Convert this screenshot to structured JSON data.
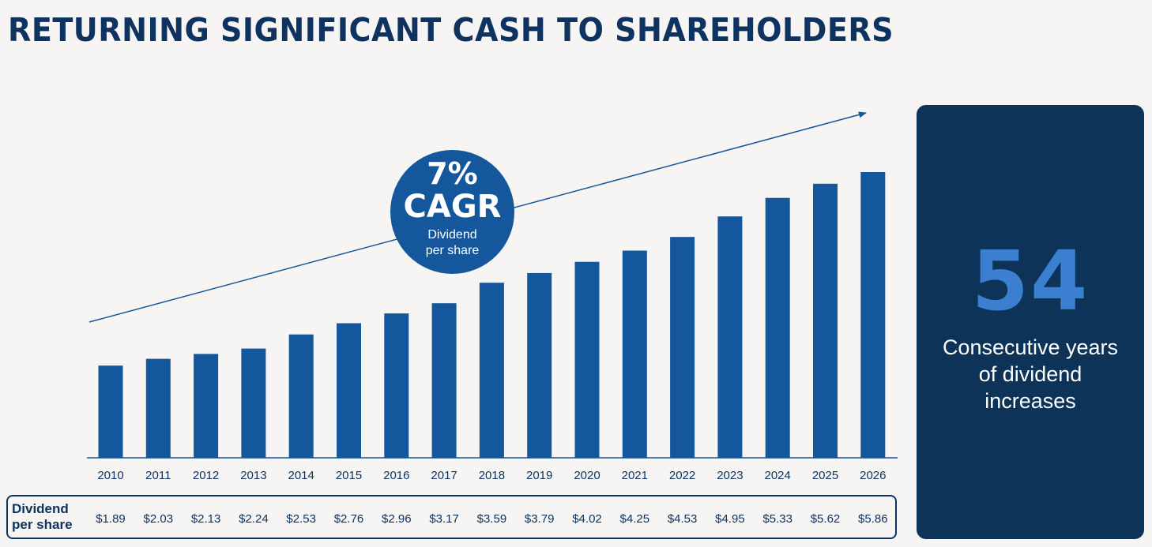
{
  "title": "RETURNING SIGNIFICANT CASH TO SHAREHOLDERS",
  "cagr": {
    "pct": "7%",
    "label": "CAGR",
    "sub_line1": "Dividend",
    "sub_line2": "per share"
  },
  "panel": {
    "number": "54",
    "text_line1": "Consecutive years",
    "text_line2": "of dividend",
    "text_line3": "increases"
  },
  "table": {
    "row_label_line1": "Dividend",
    "row_label_line2": "per share"
  },
  "chart_data": {
    "type": "bar",
    "title": "RETURNING SIGNIFICANT CASH TO SHAREHOLDERS",
    "xlabel": "",
    "ylabel": "Dividend per share",
    "categories": [
      "2010",
      "2011",
      "2012",
      "2013",
      "2014",
      "2015",
      "2016",
      "2017",
      "2018",
      "2019",
      "2020",
      "2021",
      "2022",
      "2023",
      "2024",
      "2025",
      "2026"
    ],
    "values": [
      1.89,
      2.03,
      2.13,
      2.24,
      2.53,
      2.76,
      2.96,
      3.17,
      3.59,
      3.79,
      4.02,
      4.25,
      4.53,
      4.95,
      5.33,
      5.62,
      5.86
    ],
    "value_labels": [
      "$1.89",
      "$2.03",
      "$2.13",
      "$2.24",
      "$2.53",
      "$2.76",
      "$2.96",
      "$3.17",
      "$3.59",
      "$3.79",
      "$4.02",
      "$4.25",
      "$4.53",
      "$4.95",
      "$5.33",
      "$5.62",
      "$5.86"
    ],
    "ylim": [
      0,
      5.86
    ],
    "annotation": "7% CAGR",
    "colors": {
      "bar": "#14579c",
      "trend": "#14579c",
      "axis": "#14579c"
    }
  }
}
